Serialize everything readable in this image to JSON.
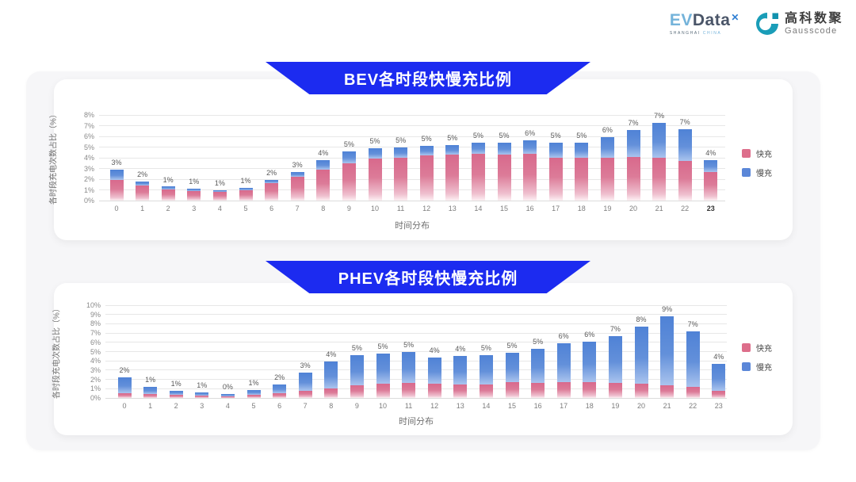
{
  "logo": {
    "evdata_ev": "EV",
    "evdata_data": "Data",
    "evdata_x": "✕",
    "evdata_sub1": "SHANGHAI",
    "evdata_sub2": "CHINA",
    "gausscode_cn": "高科数聚",
    "gausscode_en": "Gausscode"
  },
  "colors": {
    "banner_blue": "#1c2bf0",
    "fast_charge_pink": "#dd6e8b",
    "slow_charge_blue": "#5b87d8",
    "panel_gray": "#f6f6f8",
    "gausscode_teal": "#1a9db8"
  },
  "chart_data": [
    {
      "type": "bar",
      "stacked": true,
      "title": "BEV各时段快慢充比例",
      "xlabel": "时间分布",
      "ylabel": "各时段充电次数占比（%）",
      "categories": [
        "0",
        "1",
        "2",
        "3",
        "4",
        "5",
        "6",
        "7",
        "8",
        "9",
        "10",
        "11",
        "12",
        "13",
        "14",
        "15",
        "16",
        "17",
        "18",
        "19",
        "20",
        "21",
        "22",
        "23"
      ],
      "emphasized_category": "23",
      "series": [
        {
          "name": "快充",
          "color": "#dd6e8b",
          "values": [
            1.9,
            1.4,
            1.0,
            0.9,
            0.85,
            1.0,
            1.6,
            2.2,
            2.9,
            3.5,
            3.9,
            4.0,
            4.2,
            4.3,
            4.4,
            4.3,
            4.4,
            4.0,
            4.0,
            4.0,
            4.1,
            4.0,
            3.7,
            2.7
          ]
        },
        {
          "name": "慢充",
          "color": "#5b87d8",
          "values": [
            1.0,
            0.4,
            0.3,
            0.2,
            0.1,
            0.2,
            0.3,
            0.5,
            0.9,
            1.1,
            1.0,
            1.0,
            0.9,
            0.9,
            1.0,
            1.1,
            1.2,
            1.4,
            1.4,
            1.9,
            2.5,
            3.3,
            3.0,
            1.1
          ]
        }
      ],
      "total_labels": [
        "3%",
        "2%",
        "1%",
        "1%",
        "1%",
        "1%",
        "2%",
        "3%",
        "4%",
        "5%",
        "5%",
        "5%",
        "5%",
        "5%",
        "5%",
        "5%",
        "6%",
        "5%",
        "5%",
        "6%",
        "7%",
        "7%",
        "7%",
        "4%"
      ],
      "ylim": [
        0,
        8
      ],
      "ytick_step": 1,
      "ytick_suffix": "%",
      "grid": true,
      "legend_position": "right"
    },
    {
      "type": "bar",
      "stacked": true,
      "title": "PHEV各时段快慢充比例",
      "xlabel": "时间分布",
      "ylabel": "各时段充电次数占比（%）",
      "categories": [
        "0",
        "1",
        "2",
        "3",
        "4",
        "5",
        "6",
        "7",
        "8",
        "9",
        "10",
        "11",
        "12",
        "13",
        "14",
        "15",
        "16",
        "17",
        "18",
        "19",
        "20",
        "21",
        "22",
        "23"
      ],
      "emphasized_category": "",
      "series": [
        {
          "name": "快充",
          "color": "#dd6e8b",
          "values": [
            0.5,
            0.4,
            0.35,
            0.3,
            0.2,
            0.35,
            0.55,
            0.8,
            1.0,
            1.4,
            1.5,
            1.6,
            1.5,
            1.5,
            1.5,
            1.7,
            1.6,
            1.7,
            1.7,
            1.6,
            1.5,
            1.4,
            1.2,
            0.8
          ]
        },
        {
          "name": "慢充",
          "color": "#5b87d8",
          "values": [
            1.7,
            0.8,
            0.45,
            0.3,
            0.25,
            0.5,
            0.95,
            1.95,
            2.9,
            3.2,
            3.3,
            3.4,
            2.9,
            3.0,
            3.1,
            3.2,
            3.7,
            4.2,
            4.4,
            5.1,
            6.2,
            7.4,
            6.0,
            2.9
          ]
        }
      ],
      "total_labels": [
        "2%",
        "1%",
        "1%",
        "1%",
        "0%",
        "1%",
        "2%",
        "3%",
        "4%",
        "5%",
        "5%",
        "5%",
        "4%",
        "4%",
        "5%",
        "5%",
        "5%",
        "6%",
        "6%",
        "7%",
        "8%",
        "9%",
        "7%",
        "4%"
      ],
      "ylim": [
        0,
        10
      ],
      "ytick_step": 1,
      "ytick_suffix": "%",
      "grid": true,
      "legend_position": "right"
    }
  ]
}
